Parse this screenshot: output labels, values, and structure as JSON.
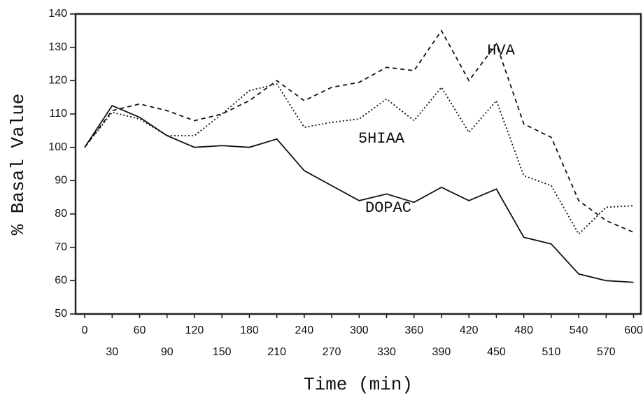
{
  "chart_data": {
    "type": "line",
    "xlabel": "Time (min)",
    "ylabel": "% Basal Value",
    "x": [
      0,
      30,
      60,
      90,
      120,
      150,
      180,
      210,
      240,
      270,
      300,
      330,
      360,
      390,
      420,
      450,
      480,
      510,
      540,
      570,
      600
    ],
    "series": [
      {
        "name": "DOPAC",
        "color": "#111111",
        "dash": "solid",
        "values": [
          100,
          112.5,
          109,
          103.5,
          100,
          100.5,
          100,
          102.5,
          93,
          88.5,
          84,
          86,
          83.5,
          88,
          84,
          87.5,
          73,
          71,
          62,
          60,
          59.5
        ]
      },
      {
        "name": "HVA",
        "color": "#111111",
        "dash": "dashed",
        "values": [
          100,
          111,
          113,
          111,
          108,
          110,
          114,
          120,
          114,
          118,
          119.5,
          124,
          123,
          135,
          120,
          131,
          107,
          103,
          84,
          78,
          74.5
        ]
      },
      {
        "name": "5HIAA",
        "color": "#111111",
        "dash": "dotted",
        "values": [
          100,
          110.5,
          108.5,
          103.5,
          103.5,
          110,
          117,
          119,
          106,
          107.5,
          108.5,
          114.5,
          108,
          118,
          104.5,
          114,
          91.5,
          88.5,
          74,
          82,
          82.5
        ]
      }
    ],
    "xlim": [
      -10,
      608
    ],
    "xticks": [
      0,
      30,
      60,
      90,
      120,
      150,
      180,
      210,
      240,
      270,
      300,
      330,
      360,
      390,
      420,
      450,
      480,
      510,
      540,
      570,
      600
    ],
    "ylim": [
      50,
      140
    ],
    "yticks": [
      50,
      60,
      70,
      80,
      90,
      100,
      110,
      120,
      130,
      140
    ],
    "grid": false
  }
}
